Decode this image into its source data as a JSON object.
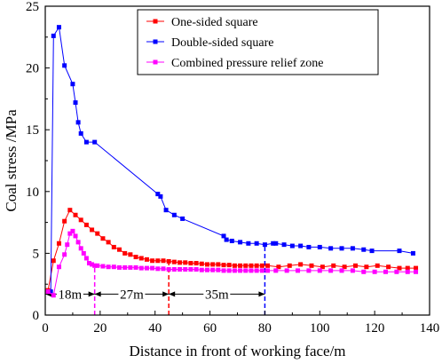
{
  "chart_data": {
    "type": "line",
    "title": "",
    "xlabel": "Distance in front of working face/m",
    "ylabel": "Coal stress /MPa",
    "xlim": [
      0,
      140
    ],
    "ylim": [
      0,
      25
    ],
    "xticks": [
      0,
      20,
      40,
      60,
      80,
      100,
      120,
      140
    ],
    "yticks": [
      0,
      5,
      10,
      15,
      20,
      25
    ],
    "grid": false,
    "legend_position": "top-right",
    "series": [
      {
        "name": "One-sided square",
        "color": "#ff0000",
        "marker": "square",
        "x": [
          1,
          3,
          5,
          7,
          9,
          11,
          13,
          15,
          17,
          19,
          21,
          23,
          25,
          27,
          29,
          31,
          33,
          35,
          37,
          39,
          41,
          43,
          45,
          47,
          49,
          51,
          53,
          55,
          57,
          59,
          61,
          63,
          65,
          67,
          69,
          71,
          73,
          75,
          77,
          79,
          81,
          85,
          89,
          93,
          97,
          101,
          105,
          109,
          113,
          117,
          121,
          125,
          129,
          132,
          135
        ],
        "y": [
          2.0,
          4.4,
          5.8,
          7.6,
          8.5,
          8.1,
          7.7,
          7.3,
          6.9,
          6.6,
          6.2,
          5.9,
          5.5,
          5.3,
          5.0,
          4.9,
          4.7,
          4.6,
          4.5,
          4.4,
          4.4,
          4.4,
          4.35,
          4.3,
          4.25,
          4.25,
          4.2,
          4.2,
          4.15,
          4.1,
          4.1,
          4.1,
          4.05,
          4.05,
          4.0,
          4.0,
          4.0,
          4.0,
          4.0,
          4.0,
          4.0,
          3.9,
          4.0,
          4.1,
          4.0,
          3.9,
          4.0,
          3.9,
          4.0,
          3.9,
          4.0,
          3.9,
          3.8,
          3.8,
          3.8
        ]
      },
      {
        "name": "Double-sided square",
        "color": "#0000ff",
        "marker": "square",
        "x": [
          2,
          3,
          5,
          7,
          10,
          11,
          12,
          13,
          15,
          18,
          41,
          42,
          44,
          47,
          50,
          65,
          66,
          68,
          71,
          74,
          77,
          80,
          83,
          84,
          87,
          90,
          93,
          96,
          100,
          104,
          108,
          112,
          116,
          119,
          129,
          134
        ],
        "y": [
          1.9,
          22.6,
          23.3,
          20.2,
          18.7,
          17.2,
          15.6,
          14.7,
          14.0,
          14.0,
          9.8,
          9.6,
          8.5,
          8.1,
          7.8,
          6.4,
          6.1,
          6.0,
          5.9,
          5.8,
          5.8,
          5.7,
          5.8,
          5.8,
          5.7,
          5.6,
          5.6,
          5.5,
          5.5,
          5.4,
          5.4,
          5.4,
          5.3,
          5.2,
          5.2,
          5.0
        ]
      },
      {
        "name": "Combined pressure relief zone",
        "color": "#ff00ff",
        "marker": "square",
        "x": [
          1,
          3,
          5,
          7,
          8,
          9,
          10,
          11,
          12,
          13,
          14,
          15,
          16,
          17,
          18,
          19,
          21,
          23,
          25,
          27,
          29,
          31,
          33,
          35,
          37,
          39,
          41,
          43,
          45,
          47,
          49,
          51,
          53,
          55,
          57,
          59,
          61,
          63,
          65,
          67,
          69,
          71,
          73,
          75,
          77,
          79,
          81,
          84,
          88,
          92,
          96,
          100,
          104,
          108,
          112,
          116,
          120,
          124,
          128,
          132,
          135
        ],
        "y": [
          1.9,
          1.6,
          3.9,
          4.9,
          5.7,
          6.6,
          6.8,
          6.4,
          5.9,
          5.4,
          5.0,
          4.6,
          4.2,
          4.1,
          4.0,
          4.0,
          3.95,
          3.9,
          3.9,
          3.85,
          3.85,
          3.85,
          3.85,
          3.8,
          3.8,
          3.8,
          3.75,
          3.75,
          3.7,
          3.7,
          3.7,
          3.7,
          3.7,
          3.7,
          3.65,
          3.65,
          3.65,
          3.65,
          3.6,
          3.6,
          3.6,
          3.6,
          3.6,
          3.6,
          3.6,
          3.6,
          3.6,
          3.6,
          3.6,
          3.6,
          3.6,
          3.6,
          3.6,
          3.6,
          3.6,
          3.5,
          3.5,
          3.5,
          3.5,
          3.5,
          3.5
        ]
      }
    ],
    "annotations": [
      {
        "text": "18m",
        "from_x": 0,
        "to_x": 18,
        "y": 1.7
      },
      {
        "text": "27m",
        "from_x": 18,
        "to_x": 45,
        "y": 1.7
      },
      {
        "text": "35m",
        "from_x": 45,
        "to_x": 80,
        "y": 1.7
      }
    ],
    "reference_lines": [
      {
        "x": 18,
        "color": "#ff00ff",
        "y_top": 4.0
      },
      {
        "x": 45,
        "color": "#ff0000",
        "y_top": 4.4
      },
      {
        "x": 80,
        "color": "#0000ff",
        "y_top": 5.7
      }
    ]
  }
}
